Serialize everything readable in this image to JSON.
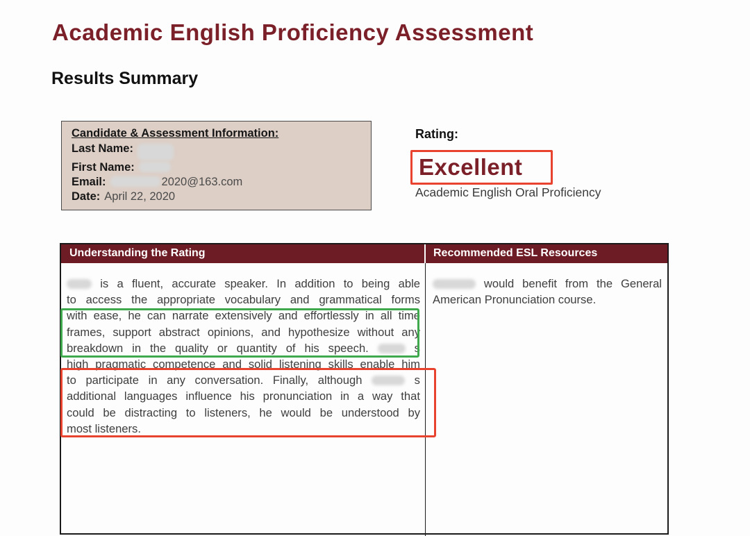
{
  "page": {
    "title": "Academic English Proficiency Assessment",
    "subtitle": "Results Summary"
  },
  "candidate_info": {
    "heading": "Candidate & Assessment Information:",
    "fields": [
      {
        "label": "Last Name:",
        "value": "",
        "redacted": true
      },
      {
        "label": "First Name:",
        "value": "",
        "redacted": true
      },
      {
        "label": "Email:",
        "value": "2020@163.com",
        "redacted_prefix": true
      },
      {
        "label": "Date:",
        "value": "April 22, 2020",
        "redacted": false
      }
    ]
  },
  "rating": {
    "label": "Rating:",
    "value": "Excellent",
    "description": "Academic English Oral Proficiency"
  },
  "results_table": {
    "header": [
      "Understanding the Rating",
      "Recommended ESL Resources"
    ],
    "understanding_lines": [
      {
        "justify": true,
        "segs": [
          {
            "blur": 36
          },
          {
            "text": " is a fluent, accurate speaker.  In addition to being able"
          }
        ]
      },
      {
        "justify": true,
        "segs": [
          {
            "text": "to access the appropriate vocabulary and grammatical forms"
          }
        ]
      },
      {
        "justify": true,
        "segs": [
          {
            "text": "with ease, he can narrate extensively and effortlessly in all time"
          }
        ]
      },
      {
        "justify": true,
        "segs": [
          {
            "text": "frames, support abstract opinions, and hypothesize without any"
          }
        ]
      },
      {
        "justify": true,
        "segs": [
          {
            "text": "breakdown in the quality or quantity of his speech. "
          },
          {
            "blur": 40
          },
          {
            "text": " s"
          }
        ]
      },
      {
        "justify": true,
        "segs": [
          {
            "text": "high pragmatic competence and solid listening skills enable him"
          }
        ]
      },
      {
        "justify": true,
        "segs": [
          {
            "text": "to participate in any conversation.  Finally, although "
          },
          {
            "blur": 48
          },
          {
            "text": " s"
          }
        ]
      },
      {
        "justify": true,
        "segs": [
          {
            "text": "additional languages influence his pronunciation in a way that"
          }
        ]
      },
      {
        "justify": true,
        "segs": [
          {
            "text": "could be distracting to listeners, he would be understood by"
          }
        ]
      },
      {
        "justify": false,
        "segs": [
          {
            "text": "most listeners."
          }
        ]
      }
    ],
    "resources_lines": [
      {
        "justify": true,
        "segs": [
          {
            "blur": 62
          },
          {
            "text": " would benefit from the General"
          }
        ]
      },
      {
        "justify": false,
        "segs": [
          {
            "text": "American Pronunciation course."
          }
        ]
      }
    ]
  },
  "annotations": {
    "rating_highlight": "red box around rating value",
    "green_highlight": "green box around narration ability sentences",
    "red_highlight": "red box around pronunciation sentences"
  },
  "colors": {
    "maroon": "#7b2028",
    "header_bg": "#6d1b24",
    "info_bg": "#ddcfc6",
    "annot_red": "#e8432e",
    "annot_green": "#3faa4d"
  }
}
